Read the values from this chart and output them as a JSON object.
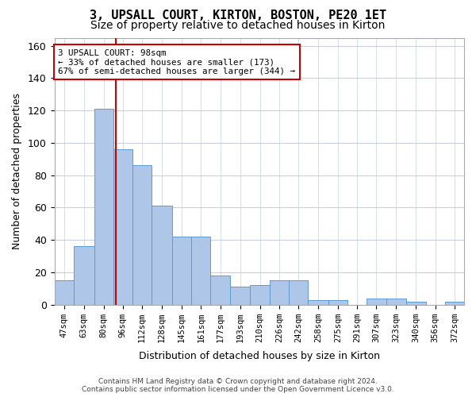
{
  "title": "3, UPSALL COURT, KIRTON, BOSTON, PE20 1ET",
  "subtitle": "Size of property relative to detached houses in Kirton",
  "xlabel": "Distribution of detached houses by size in Kirton",
  "ylabel": "Number of detached properties",
  "bar_color": "#aec6e8",
  "bar_edge_color": "#5b9bd5",
  "background_color": "#ffffff",
  "grid_color": "#c8d0dc",
  "vline_x": 98,
  "vline_color": "#cc0000",
  "bin_edges": [
    47,
    63,
    80,
    96,
    112,
    128,
    145,
    161,
    177,
    193,
    210,
    226,
    242,
    258,
    275,
    291,
    307,
    323,
    340,
    356,
    372,
    388
  ],
  "bar_heights": [
    15,
    36,
    121,
    96,
    86,
    61,
    42,
    42,
    18,
    11,
    12,
    15,
    15,
    3,
    3,
    0,
    4,
    4,
    2,
    0,
    2
  ],
  "tick_labels": [
    "47sqm",
    "63sqm",
    "80sqm",
    "96sqm",
    "112sqm",
    "128sqm",
    "145sqm",
    "161sqm",
    "177sqm",
    "193sqm",
    "210sqm",
    "226sqm",
    "242sqm",
    "258sqm",
    "275sqm",
    "291sqm",
    "307sqm",
    "323sqm",
    "340sqm",
    "356sqm",
    "372sqm"
  ],
  "xlim": [
    47,
    388
  ],
  "ylim": [
    0,
    165
  ],
  "yticks": [
    0,
    20,
    40,
    60,
    80,
    100,
    120,
    140,
    160
  ],
  "annotation_text": "3 UPSALL COURT: 98sqm\n← 33% of detached houses are smaller (173)\n67% of semi-detached houses are larger (344) →",
  "annotation_box_color": "#ffffff",
  "annotation_box_edge": "#cc0000",
  "footer_text": "Contains HM Land Registry data © Crown copyright and database right 2024.\nContains public sector information licensed under the Open Government Licence v3.0.",
  "tick_label_fontsize": 7.5,
  "title_fontsize": 11,
  "subtitle_fontsize": 10
}
